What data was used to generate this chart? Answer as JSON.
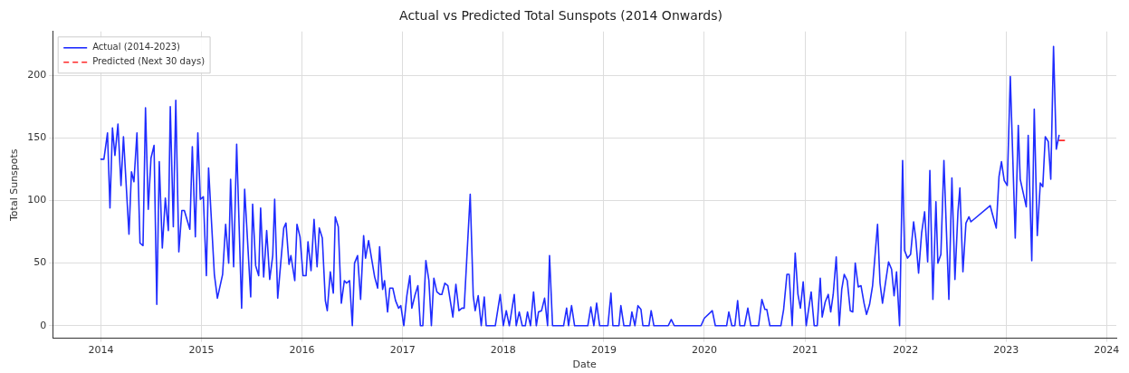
{
  "chart_data": {
    "type": "line",
    "title": "Actual vs Predicted Total Sunspots (2014 Onwards)",
    "xlabel": "Date",
    "ylabel": "Total Sunspots",
    "xlim": [
      "2013-07-10",
      "2024-02-05"
    ],
    "xticks": [
      "2014",
      "2015",
      "2016",
      "2017",
      "2018",
      "2019",
      "2020",
      "2021",
      "2022",
      "2023",
      "2024"
    ],
    "ylim": [
      -10,
      235
    ],
    "yticks": [
      0,
      50,
      100,
      150,
      200
    ],
    "grid": true,
    "legend": "top left",
    "marker": "none",
    "series": [
      {
        "name": "Actual (2014-2023)",
        "color": "#1f2cff",
        "line_style": "solid",
        "x": [
          "2014-01-01",
          "2014-01-12",
          "2014-01-25",
          "2014-02-03",
          "2014-02-12",
          "2014-02-21",
          "2014-03-04",
          "2014-03-15",
          "2014-03-24",
          "2014-04-13",
          "2014-04-22",
          "2014-05-01",
          "2014-05-12",
          "2014-05-23",
          "2014-06-03",
          "2014-06-12",
          "2014-06-22",
          "2014-07-02",
          "2014-07-13",
          "2014-07-23",
          "2014-08-01",
          "2014-08-12",
          "2014-08-23",
          "2014-09-03",
          "2014-09-10",
          "2014-09-21",
          "2014-09-30",
          "2014-10-11",
          "2014-10-22",
          "2014-10-31",
          "2014-11-20",
          "2014-11-29",
          "2014-12-10",
          "2014-12-19",
          "2014-12-28",
          "2015-01-08",
          "2015-01-19",
          "2015-01-27",
          "2015-02-17",
          "2015-02-28",
          "2015-03-19",
          "2015-03-30",
          "2015-04-10",
          "2015-04-17",
          "2015-04-28",
          "2015-05-09",
          "2015-05-27",
          "2015-06-07",
          "2015-06-29",
          "2015-07-06",
          "2015-07-17",
          "2015-07-28",
          "2015-08-04",
          "2015-08-15",
          "2015-08-26",
          "2015-09-06",
          "2015-09-17",
          "2015-09-24",
          "2015-10-05",
          "2015-10-27",
          "2015-11-04",
          "2015-11-15",
          "2015-11-22",
          "2015-12-06",
          "2015-12-14",
          "2015-12-25",
          "2016-01-05",
          "2016-01-16",
          "2016-01-23",
          "2016-02-03",
          "2016-02-14",
          "2016-02-25",
          "2016-03-04",
          "2016-03-15",
          "2016-03-26",
          "2016-04-02",
          "2016-04-13",
          "2016-04-24",
          "2016-05-01",
          "2016-05-12",
          "2016-05-23",
          "2016-06-03",
          "2016-06-11",
          "2016-06-22",
          "2016-07-02",
          "2016-07-10",
          "2016-07-21",
          "2016-08-01",
          "2016-08-12",
          "2016-08-19",
          "2016-08-30",
          "2016-09-21",
          "2016-10-02",
          "2016-10-09",
          "2016-10-20",
          "2016-10-27",
          "2016-11-07",
          "2016-11-15",
          "2016-11-26",
          "2016-12-06",
          "2016-12-17",
          "2016-12-25",
          "2017-01-05",
          "2017-01-16",
          "2017-01-27",
          "2017-02-03",
          "2017-02-14",
          "2017-02-25",
          "2017-03-06",
          "2017-03-15",
          "2017-03-26",
          "2017-04-06",
          "2017-04-15",
          "2017-04-24",
          "2017-05-05",
          "2017-05-16",
          "2017-05-23",
          "2017-06-03",
          "2017-06-14",
          "2017-07-02",
          "2017-07-13",
          "2017-07-24",
          "2017-08-04",
          "2017-08-12",
          "2017-09-03",
          "2017-09-14",
          "2017-09-21",
          "2017-10-02",
          "2017-10-13",
          "2017-10-24",
          "2017-10-31",
          "2017-12-03",
          "2017-12-21",
          "2018-01-01",
          "2018-01-12",
          "2018-01-23",
          "2018-02-10",
          "2018-02-17",
          "2018-02-28",
          "2018-03-11",
          "2018-03-22",
          "2018-03-30",
          "2018-04-10",
          "2018-04-21",
          "2018-05-01",
          "2018-05-09",
          "2018-05-20",
          "2018-05-31",
          "2018-06-11",
          "2018-06-18",
          "2018-06-29",
          "2018-08-08",
          "2018-08-19",
          "2018-08-26",
          "2018-09-06",
          "2018-09-17",
          "2018-11-04",
          "2018-11-15",
          "2018-11-26",
          "2018-12-06",
          "2018-12-17",
          "2019-01-16",
          "2019-01-27",
          "2019-02-03",
          "2019-02-25",
          "2019-03-04",
          "2019-03-15",
          "2019-04-06",
          "2019-04-13",
          "2019-04-24",
          "2019-05-05",
          "2019-05-16",
          "2019-05-23",
          "2019-06-14",
          "2019-06-22",
          "2019-07-02",
          "2019-08-23",
          "2019-09-03",
          "2019-09-14",
          "2019-12-20",
          "2020-01-01",
          "2020-01-30",
          "2020-02-10",
          "2020-03-22",
          "2020-03-30",
          "2020-04-10",
          "2020-04-21",
          "2020-05-01",
          "2020-05-09",
          "2020-05-26",
          "2020-06-07",
          "2020-06-18",
          "2020-07-16",
          "2020-07-28",
          "2020-08-08",
          "2020-08-15",
          "2020-08-26",
          "2020-10-05",
          "2020-10-15",
          "2020-10-27",
          "2020-11-04",
          "2020-11-15",
          "2020-11-26",
          "2020-12-06",
          "2020-12-15",
          "2020-12-25",
          "2021-01-05",
          "2021-01-23",
          "2021-02-03",
          "2021-02-14",
          "2021-02-25",
          "2021-03-04",
          "2021-03-15",
          "2021-03-26",
          "2021-04-04",
          "2021-04-13",
          "2021-04-24",
          "2021-05-05",
          "2021-05-14",
          "2021-05-23",
          "2021-06-03",
          "2021-06-14",
          "2021-06-23",
          "2021-07-02",
          "2021-07-13",
          "2021-07-23",
          "2021-08-03",
          "2021-08-12",
          "2021-08-23",
          "2021-09-03",
          "2021-09-21",
          "2021-09-30",
          "2021-10-09",
          "2021-10-31",
          "2021-11-11",
          "2021-11-20",
          "2021-11-29",
          "2021-12-10",
          "2021-12-21",
          "2021-12-28",
          "2022-01-08",
          "2022-01-19",
          "2022-01-30",
          "2022-02-07",
          "2022-02-17",
          "2022-02-28",
          "2022-03-11",
          "2022-03-22",
          "2022-03-30",
          "2022-04-10",
          "2022-04-21",
          "2022-04-28",
          "2022-05-09",
          "2022-05-20",
          "2022-06-07",
          "2022-06-18",
          "2022-06-29",
          "2022-07-10",
          "2022-07-17",
          "2022-07-28",
          "2022-08-08",
          "2022-08-19",
          "2022-08-26",
          "2022-11-04",
          "2022-11-11",
          "2022-11-26",
          "2022-12-06",
          "2022-12-15",
          "2022-12-25",
          "2023-01-05",
          "2023-01-16",
          "2023-02-03",
          "2023-02-14",
          "2023-02-21",
          "2023-03-04",
          "2023-03-15",
          "2023-03-22",
          "2023-04-04",
          "2023-04-13",
          "2023-04-24",
          "2023-05-05",
          "2023-05-14",
          "2023-05-23",
          "2023-06-03",
          "2023-06-12",
          "2023-06-22",
          "2023-07-02",
          "2023-07-12"
        ],
        "values": [
          133,
          133,
          154,
          94,
          158,
          136,
          161,
          112,
          151,
          73,
          123,
          115,
          154,
          66,
          64,
          174,
          93,
          134,
          144,
          17,
          131,
          62,
          102,
          76,
          175,
          79,
          180,
          59,
          92,
          92,
          77,
          143,
          71,
          154,
          101,
          103,
          40,
          126,
          41,
          22,
          41,
          81,
          50,
          117,
          47,
          145,
          14,
          109,
          23,
          97,
          48,
          40,
          94,
          39,
          76,
          37,
          56,
          101,
          22,
          78,
          82,
          49,
          56,
          36,
          81,
          71,
          40,
          40,
          67,
          44,
          85,
          47,
          78,
          70,
          20,
          12,
          43,
          26,
          87,
          79,
          18,
          36,
          34,
          36,
          0,
          50,
          56,
          21,
          72,
          54,
          68,
          39,
          30,
          63,
          29,
          36,
          11,
          30,
          30,
          20,
          14,
          16,
          0,
          24,
          40,
          14,
          24,
          32,
          0,
          0,
          52,
          36,
          0,
          38,
          27,
          25,
          25,
          34,
          32,
          7,
          33,
          12,
          14,
          14,
          105,
          24,
          12,
          24,
          0,
          23,
          0,
          0,
          25,
          0,
          12,
          0,
          25,
          0,
          11,
          0,
          0,
          11,
          0,
          27,
          0,
          11,
          12,
          22,
          0,
          56,
          0,
          0,
          14,
          0,
          16,
          0,
          0,
          15,
          0,
          18,
          0,
          0,
          26,
          0,
          0,
          16,
          0,
          0,
          11,
          0,
          16,
          13,
          0,
          0,
          12,
          0,
          0,
          5,
          0,
          0,
          6,
          12,
          0,
          0,
          11,
          0,
          0,
          20,
          0,
          0,
          14,
          0,
          0,
          21,
          13,
          13,
          0,
          0,
          13,
          41,
          41,
          0,
          58,
          25,
          14,
          35,
          0,
          27,
          0,
          0,
          38,
          7,
          19,
          25,
          11,
          25,
          55,
          0,
          29,
          41,
          36,
          12,
          11,
          50,
          31,
          32,
          18,
          9,
          17,
          32,
          81,
          34,
          18,
          51,
          45,
          24,
          43,
          0,
          132,
          60,
          54,
          57,
          83,
          69,
          42,
          74,
          91,
          51,
          124,
          21,
          99,
          50,
          57,
          132,
          21,
          118,
          37,
          91,
          110,
          43,
          82,
          87,
          83,
          96,
          90,
          78,
          119,
          131,
          116,
          112,
          199,
          70,
          160,
          117,
          106,
          95,
          152,
          52,
          173,
          72,
          114,
          111,
          151,
          147,
          117,
          223,
          141,
          152
        ]
      },
      {
        "name": "Predicted (Next 30 days)",
        "color": "#ff2a2a",
        "line_style": "dashed",
        "x": [
          "2023-07-12",
          "2023-08-10"
        ],
        "values": [
          148,
          148
        ]
      }
    ]
  }
}
